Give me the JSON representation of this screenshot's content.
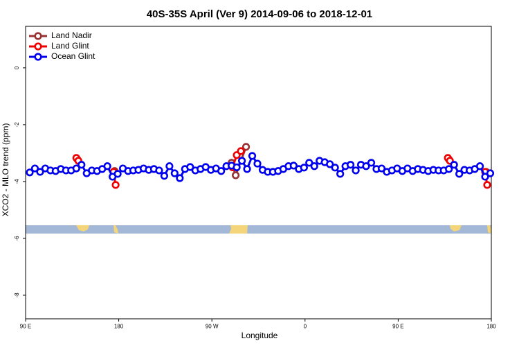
{
  "chart_data": {
    "type": "line",
    "title": "40S-35S April (Ver 9)   2014-09-06 to 2018-12-01",
    "x_label": "Longitude",
    "y_label": "XCO2 - MLO trend (ppm)",
    "xlim": [
      90,
      540
    ],
    "ylim": [
      -8.83,
      1.46
    ],
    "xticks": [
      {
        "value": 90,
        "label": "90 E"
      },
      180,
      {
        "value": 270,
        "label": "90 W"
      },
      {
        "value": 360,
        "label": "0"
      },
      {
        "value": 450,
        "label": "90 E"
      },
      {
        "value": 540,
        "label": "180"
      }
    ],
    "yticks": [
      0,
      -2,
      -4,
      -6,
      -8
    ],
    "legend": "top-left",
    "series": [
      {
        "name": "Land Nadir",
        "color": "#993333",
        "x": [
          140,
          142,
          176,
          178,
          289,
          293,
          303,
          305,
          499,
          501,
          535
        ],
        "values": [
          -3.22,
          null,
          -3.63,
          null,
          -3.34,
          -3.78,
          -2.78,
          null,
          -3.22,
          null,
          -3.66
        ]
      },
      {
        "name": "Land Glint",
        "color": "#ee0000",
        "x": [
          139,
          141,
          143,
          175,
          177,
          180,
          290,
          294,
          298,
          300,
          498,
          500,
          502,
          534,
          536
        ],
        "values": [
          -3.17,
          -3.27,
          null,
          -3.66,
          -4.12,
          null,
          -3.5,
          -3.07,
          -2.93,
          null,
          -3.17,
          -3.27,
          null,
          -3.66,
          -4.12
        ]
      },
      {
        "name": "Ocean Glint",
        "color": "#0000ee",
        "x": [
          94,
          99,
          104,
          109,
          114,
          119,
          124,
          129,
          134,
          139,
          144,
          149,
          154,
          159,
          164,
          169,
          174,
          179,
          184,
          189,
          194,
          199,
          204,
          209,
          214,
          219,
          224,
          229,
          234,
          239,
          244,
          249,
          254,
          259,
          264,
          269,
          274,
          279,
          284,
          289,
          294,
          299,
          304,
          309,
          314,
          319,
          324,
          329,
          334,
          339,
          344,
          349,
          354,
          359,
          364,
          369,
          374,
          379,
          384,
          389,
          394,
          399,
          404,
          409,
          414,
          419,
          424,
          429,
          434,
          439,
          444,
          449,
          454,
          459,
          464,
          469,
          474,
          479,
          484,
          489,
          494,
          499,
          504,
          509,
          514,
          519,
          524,
          529,
          534,
          539
        ],
        "values": [
          -3.68,
          -3.54,
          -3.66,
          -3.54,
          -3.61,
          -3.63,
          -3.56,
          -3.61,
          -3.61,
          -3.54,
          -3.41,
          -3.71,
          -3.61,
          -3.63,
          -3.56,
          -3.46,
          -3.83,
          -3.73,
          -3.54,
          -3.63,
          -3.61,
          -3.59,
          -3.54,
          -3.59,
          -3.56,
          -3.61,
          -3.8,
          -3.46,
          -3.71,
          -3.88,
          -3.56,
          -3.49,
          -3.61,
          -3.56,
          -3.49,
          -3.59,
          -3.54,
          -3.63,
          -3.46,
          -3.44,
          -3.5,
          -3.27,
          -3.56,
          -3.1,
          -3.37,
          -3.59,
          -3.66,
          -3.66,
          -3.63,
          -3.56,
          -3.46,
          -3.44,
          -3.56,
          -3.51,
          -3.34,
          -3.46,
          -3.27,
          -3.32,
          -3.39,
          -3.51,
          -3.73,
          -3.46,
          -3.41,
          -3.61,
          -3.41,
          -3.46,
          -3.34,
          -3.56,
          -3.54,
          -3.66,
          -3.61,
          -3.54,
          -3.63,
          -3.54,
          -3.63,
          -3.56,
          -3.59,
          -3.63,
          -3.59,
          -3.61,
          -3.61,
          -3.56,
          -3.41,
          -3.73,
          -3.59,
          -3.61,
          -3.56,
          -3.46,
          -3.83,
          -3.71
        ]
      }
    ]
  }
}
